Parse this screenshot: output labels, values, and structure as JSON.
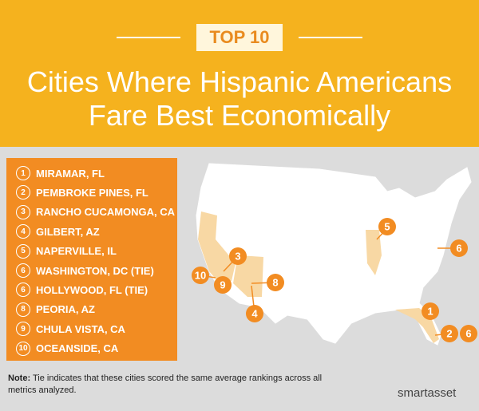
{
  "header": {
    "badge": "TOP 10",
    "title_lines": [
      "Cities Where Hispanic Americans",
      "Fare Best Economically"
    ]
  },
  "list": [
    {
      "rank": "1",
      "name": "MIRAMAR, FL"
    },
    {
      "rank": "2",
      "name": "PEMBROKE PINES, FL"
    },
    {
      "rank": "3",
      "name": "RANCHO CUCAMONGA, CA"
    },
    {
      "rank": "4",
      "name": "GILBERT, AZ"
    },
    {
      "rank": "5",
      "name": "NAPERVILLE, IL"
    },
    {
      "rank": "6",
      "name": "WASHINGTON, DC (TIE)"
    },
    {
      "rank": "6",
      "name": "HOLLYWOOD, FL (TIE)"
    },
    {
      "rank": "8",
      "name": "PEORIA, AZ"
    },
    {
      "rank": "9",
      "name": "CHULA VISTA, CA"
    },
    {
      "rank": "10",
      "name": "OCEANSIDE, CA"
    }
  ],
  "map": {
    "markers": [
      "1",
      "2",
      "6",
      "6",
      "5",
      "3",
      "10",
      "9",
      "8",
      "4"
    ]
  },
  "note": {
    "label": "Note:",
    "text": "Tie indicates that these cities scored the same average rankings across all metrics analyzed."
  },
  "logo": "smartasset"
}
